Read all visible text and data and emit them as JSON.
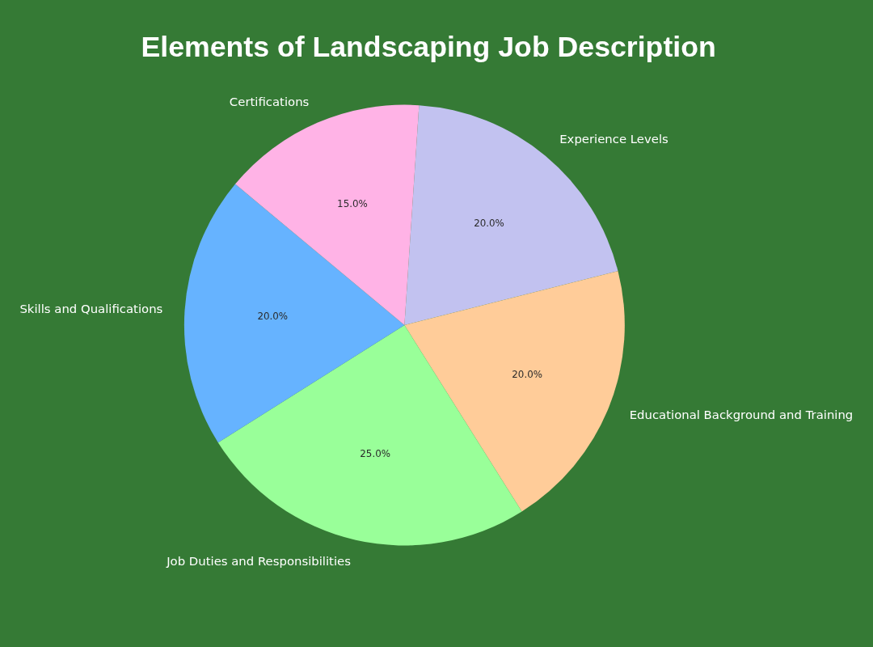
{
  "chart_data": {
    "type": "pie",
    "title": "Elements of Landscaping Job Description",
    "categories": [
      "Experience Levels",
      "Educational Background and Training",
      "Job Duties and Responsibilities",
      "Skills and Qualifications",
      "Certifications"
    ],
    "values": [
      20,
      20,
      25,
      20,
      15
    ],
    "colors": [
      "#c2c2f0",
      "#ffcc99",
      "#99ff99",
      "#66b3ff",
      "#ffb3e6"
    ],
    "value_labels": [
      "20.0%",
      "20.0%",
      "25.0%",
      "20.0%",
      "15.0%"
    ]
  }
}
